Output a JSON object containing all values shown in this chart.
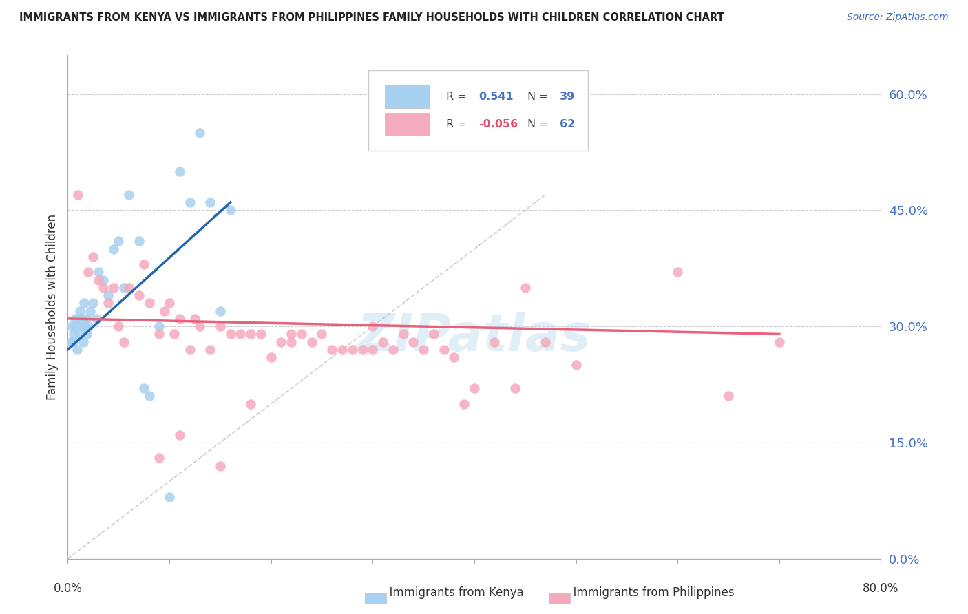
{
  "title": "IMMIGRANTS FROM KENYA VS IMMIGRANTS FROM PHILIPPINES FAMILY HOUSEHOLDS WITH CHILDREN CORRELATION CHART",
  "source": "Source: ZipAtlas.com",
  "ylabel": "Family Households with Children",
  "ytick_vals": [
    0,
    15,
    30,
    45,
    60
  ],
  "xlim": [
    0,
    80
  ],
  "ylim": [
    0,
    65
  ],
  "kenya_R": 0.541,
  "kenya_N": 39,
  "philippines_R": -0.056,
  "philippines_N": 62,
  "kenya_color": "#A8D0F0",
  "philippines_color": "#F5AABE",
  "kenya_line_color": "#2166AC",
  "philippines_line_color": "#E8607A",
  "watermark": "ZIPatlas",
  "kenya_x": [
    0.3,
    0.4,
    0.5,
    0.6,
    0.7,
    0.8,
    0.9,
    1.0,
    1.1,
    1.2,
    1.3,
    1.4,
    1.5,
    1.6,
    1.7,
    1.8,
    1.9,
    2.0,
    2.2,
    2.5,
    2.8,
    3.0,
    3.5,
    4.0,
    4.5,
    5.0,
    5.5,
    6.0,
    7.0,
    7.5,
    8.0,
    9.0,
    10.0,
    11.0,
    12.0,
    13.0,
    14.0,
    15.0,
    16.0
  ],
  "kenya_y": [
    28,
    30,
    28,
    29,
    31,
    30,
    27,
    31,
    29,
    32,
    30,
    31,
    28,
    33,
    30,
    31,
    29,
    30,
    32,
    33,
    31,
    37,
    36,
    34,
    40,
    41,
    35,
    47,
    41,
    22,
    21,
    30,
    8,
    50,
    46,
    55,
    46,
    32,
    45
  ],
  "philippines_x": [
    1.0,
    2.0,
    2.5,
    3.0,
    3.5,
    4.0,
    4.5,
    5.0,
    5.5,
    6.0,
    7.0,
    7.5,
    8.0,
    9.0,
    9.5,
    10.0,
    10.5,
    11.0,
    12.0,
    12.5,
    13.0,
    14.0,
    15.0,
    16.0,
    17.0,
    18.0,
    19.0,
    20.0,
    21.0,
    22.0,
    23.0,
    24.0,
    25.0,
    26.0,
    27.0,
    28.0,
    29.0,
    30.0,
    31.0,
    32.0,
    33.0,
    34.0,
    35.0,
    36.0,
    37.0,
    38.0,
    39.0,
    40.0,
    42.0,
    44.0,
    47.0,
    50.0,
    60.0,
    65.0,
    70.0,
    9.0,
    11.0,
    15.0,
    18.0,
    22.0,
    30.0,
    45.0
  ],
  "philippines_y": [
    47,
    37,
    39,
    36,
    35,
    33,
    35,
    30,
    28,
    35,
    34,
    38,
    33,
    29,
    32,
    33,
    29,
    31,
    27,
    31,
    30,
    27,
    30,
    29,
    29,
    29,
    29,
    26,
    28,
    29,
    29,
    28,
    29,
    27,
    27,
    27,
    27,
    30,
    28,
    27,
    29,
    28,
    27,
    29,
    27,
    26,
    20,
    22,
    28,
    22,
    28,
    25,
    37,
    21,
    28,
    13,
    16,
    12,
    20,
    28,
    27,
    35
  ],
  "kenya_line_x0": 0,
  "kenya_line_y0": 27,
  "kenya_line_x1": 16,
  "kenya_line_y1": 46,
  "philippines_line_x0": 0,
  "philippines_line_y0": 31,
  "philippines_line_x1": 70,
  "philippines_line_y1": 29
}
